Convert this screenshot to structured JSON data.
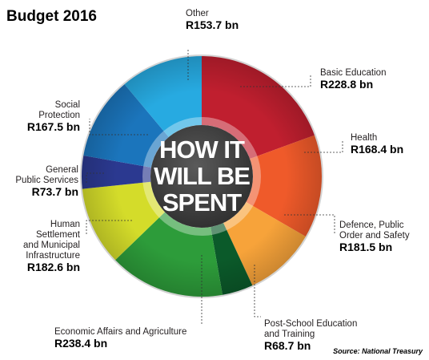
{
  "chart_data": {
    "type": "pie",
    "title": "Budget 2016",
    "center_text": [
      "HOW IT",
      "WILL BE",
      "SPENT"
    ],
    "source": "Source: National Treasury",
    "slices": [
      {
        "label": [
          "Basic Education"
        ],
        "value_text": "R228.8 bn",
        "value": 228.8,
        "color": "#c01f2f"
      },
      {
        "label": [
          "Health"
        ],
        "value_text": "R168.4 bn",
        "value": 168.4,
        "color": "#ef5a2a"
      },
      {
        "label": [
          "Defence, Public",
          "Order and Safety"
        ],
        "value_text": "R181.5 bn",
        "value": 181.5,
        "color": "#f7a33a"
      },
      {
        "label": [
          "Post-School Education",
          "and Training"
        ],
        "value_text": "R68.7 bn",
        "value": 68.7,
        "color": "#0b5a2a"
      },
      {
        "label": [
          "Economic Affairs and Agriculture"
        ],
        "value_text": "R238.4 bn",
        "value": 238.4,
        "color": "#2d9c3a"
      },
      {
        "label": [
          "Human",
          "Settlement",
          "and Municipal",
          "Infrastructure"
        ],
        "value_text": "R182.6 bn",
        "value": 182.6,
        "color": "#d4dc2a"
      },
      {
        "label": [
          "General",
          "Public Services"
        ],
        "value_text": "R73.7 bn",
        "value": 73.7,
        "color": "#2b3990"
      },
      {
        "label": [
          "Social",
          "Protection"
        ],
        "value_text": "R167.5 bn",
        "value": 167.5,
        "color": "#1b75bc"
      },
      {
        "label": [
          "Other"
        ],
        "value_text": "R153.7  bn",
        "value": 153.7,
        "color": "#27aae1"
      }
    ]
  }
}
